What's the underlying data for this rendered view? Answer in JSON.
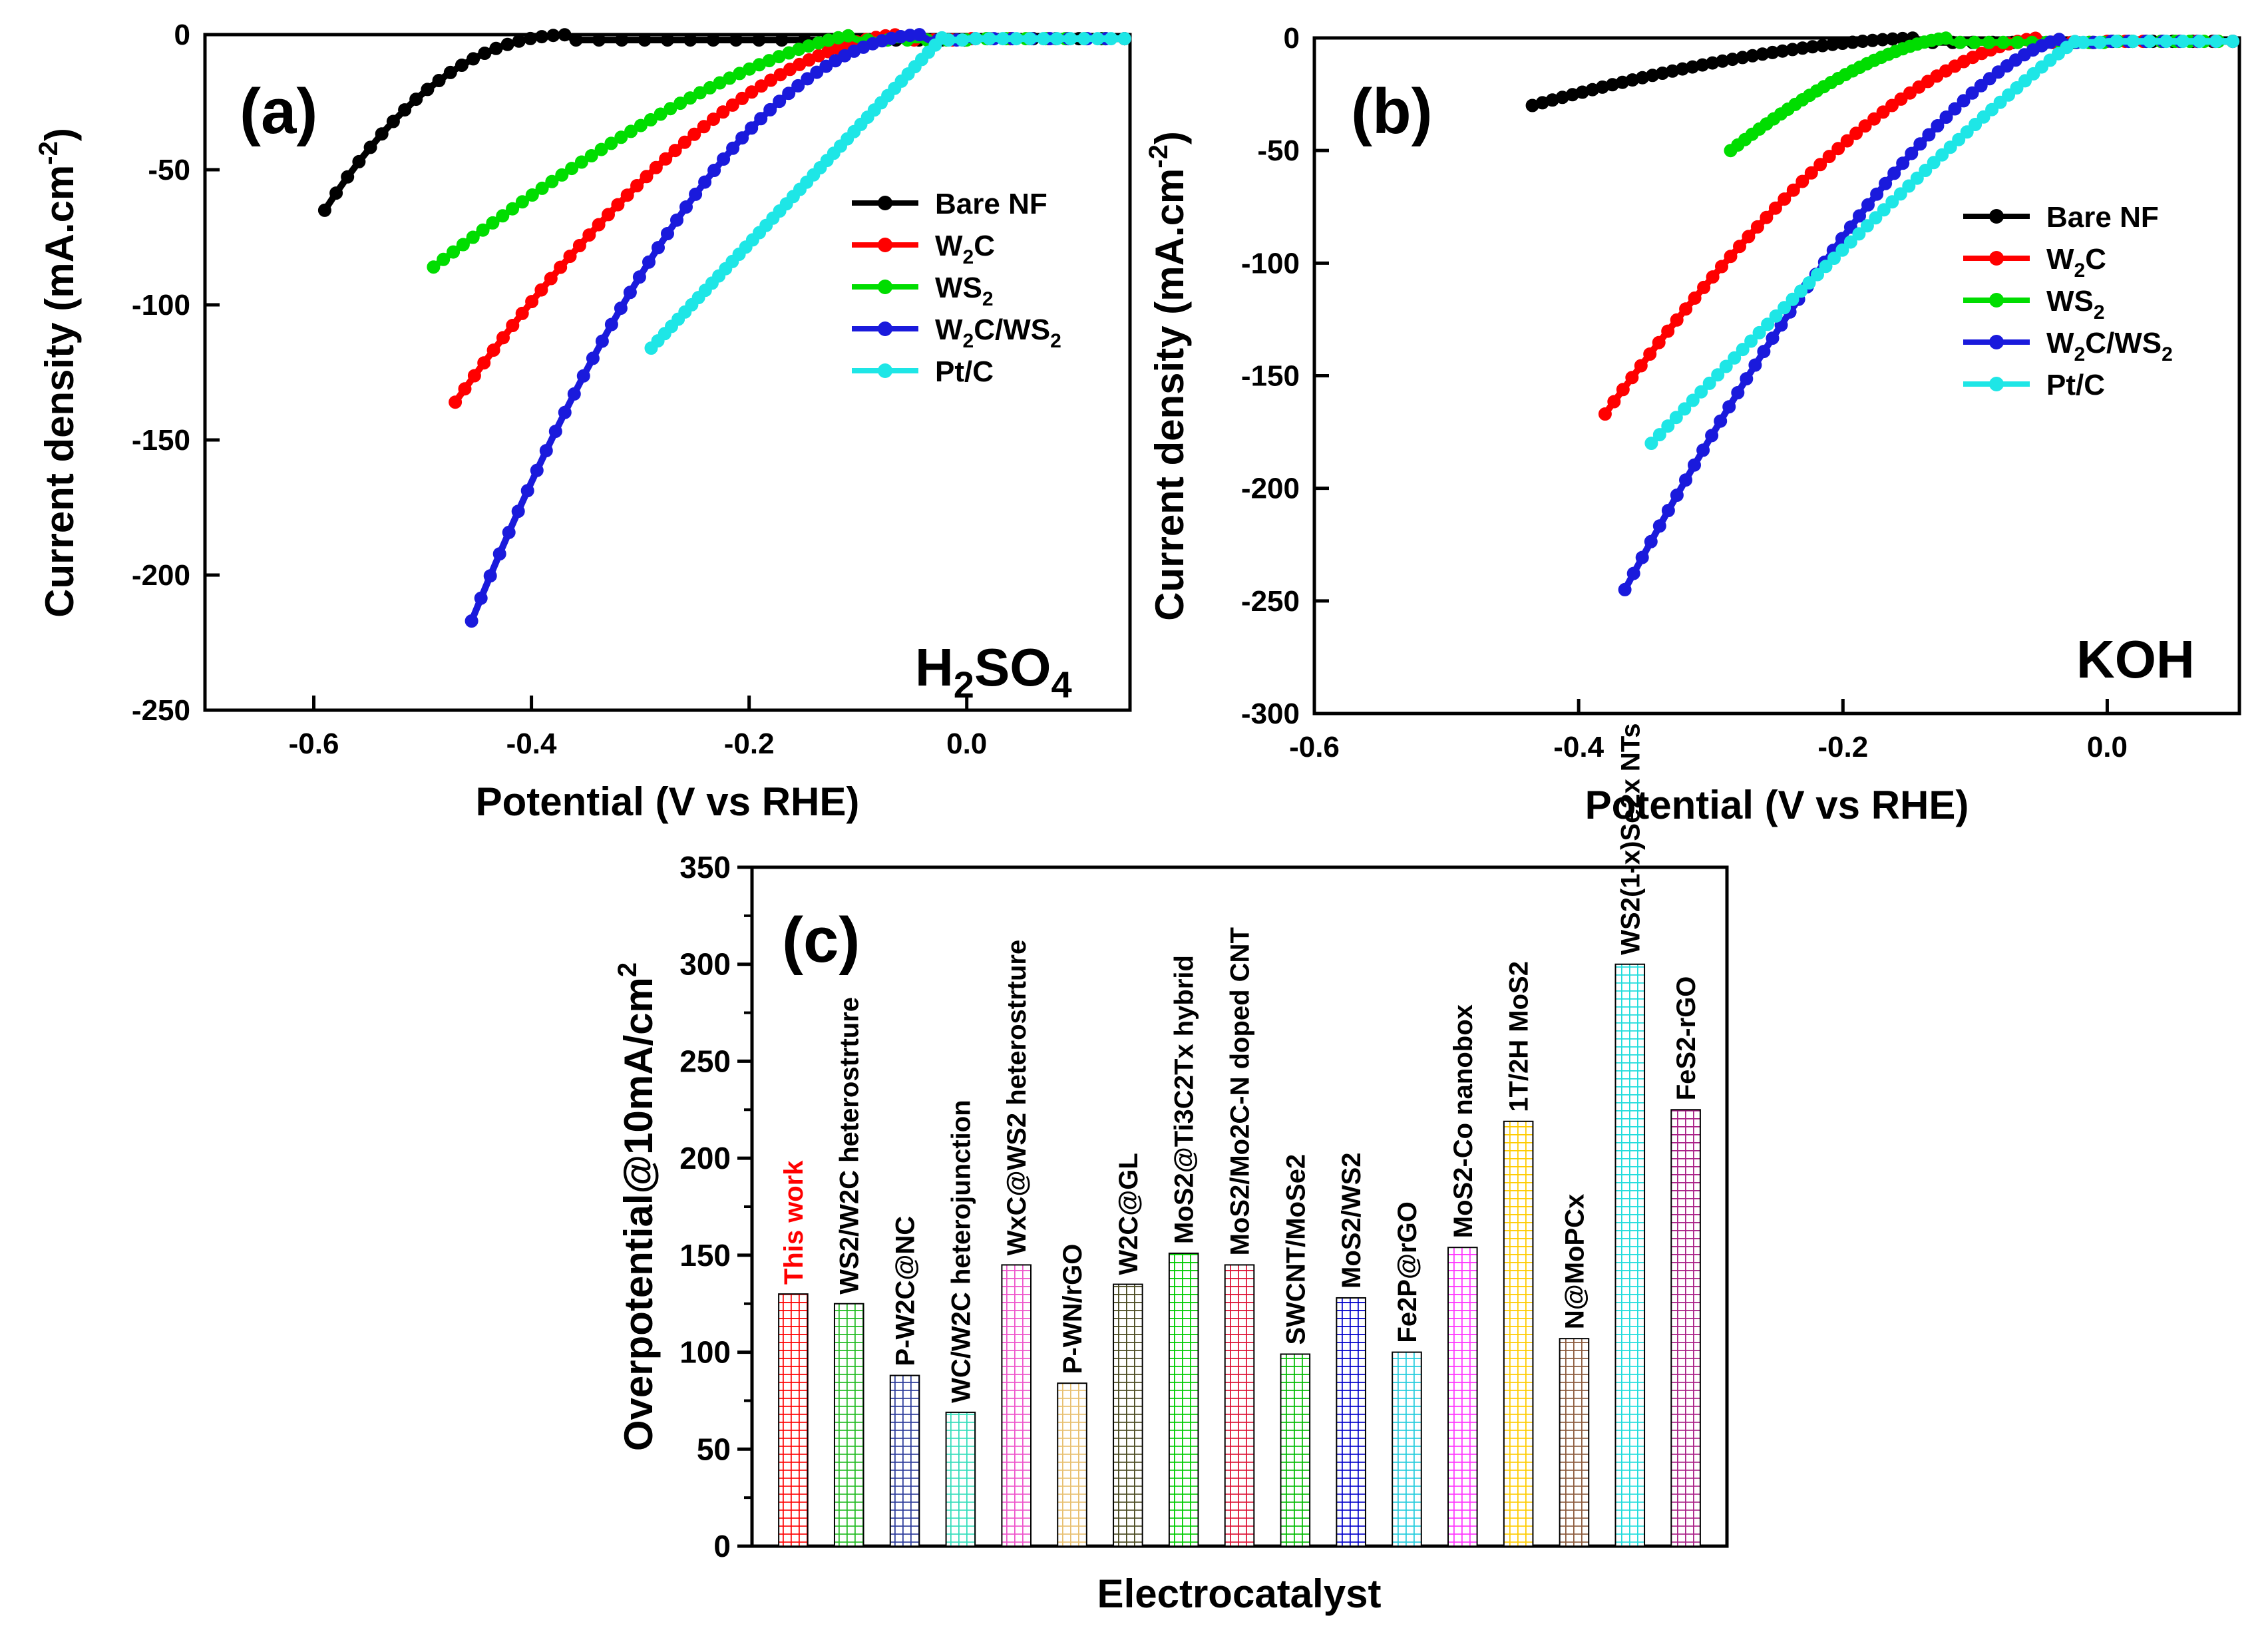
{
  "panels": {
    "a": {
      "label": "(a)",
      "electrolyte": {
        "main": "H",
        "sub1": "2",
        "mid": "SO",
        "sub2": "4"
      },
      "xlabel": "Potential (V vs RHE)",
      "ylabel": {
        "main": "Current density (mA.cm",
        "sup": "-2",
        "end": ")"
      },
      "xticks": [
        "-0.6",
        "-0.4",
        "-0.2",
        "0.0"
      ],
      "yticks": [
        "0",
        "-50",
        "-100",
        "-150",
        "-200",
        "-250"
      ]
    },
    "b": {
      "label": "(b)",
      "electrolyte": {
        "main": "KOH"
      },
      "xlabel": "Potential (V vs RHE)",
      "ylabel": {
        "main": "Current density (mA.cm",
        "sup": "-2",
        "end": ")"
      },
      "xticks": [
        "-0.6",
        "-0.4",
        "-0.2",
        "0.0"
      ],
      "yticks": [
        "0",
        "-50",
        "-100",
        "-150",
        "-200",
        "-250",
        "-300"
      ]
    },
    "c": {
      "label": "(c)",
      "xlabel": "Electrocatalyst",
      "ylabel": "Overpotential@10mA/cm",
      "ylabel_sup": "2",
      "yticks": [
        "0",
        "50",
        "100",
        "150",
        "200",
        "250",
        "300",
        "350"
      ]
    }
  },
  "legend": [
    {
      "main": "Bare NF"
    },
    {
      "main": "W",
      "sub": "2",
      "rest": "C"
    },
    {
      "main": "WS",
      "sub": "2"
    },
    {
      "main": "W",
      "sub": "2",
      "rest": "C/WS",
      "sub2": "2"
    },
    {
      "main": "Pt/C"
    }
  ],
  "chart_data": [
    {
      "panel": "a",
      "type": "line",
      "title": "",
      "annotation": "H2SO4",
      "xlabel": "Potential (V vs RHE)",
      "ylabel": "Current density (mA.cm-2)",
      "xlim": [
        -0.7,
        0.15
      ],
      "ylim": [
        -250,
        0
      ],
      "series": [
        {
          "name": "Bare NF",
          "color": "#000000",
          "onset": -0.36,
          "end_x": -0.59,
          "end_y": -65,
          "power": 2.2
        },
        {
          "name": "W2C",
          "color": "#ff0000",
          "onset": -0.06,
          "end_x": -0.47,
          "end_y": -136,
          "power": 1.7
        },
        {
          "name": "WS2",
          "color": "#00dd00",
          "onset": -0.1,
          "end_x": -0.49,
          "end_y": -86,
          "power": 1.4
        },
        {
          "name": "W2C/WS2",
          "color": "#1a1adc",
          "onset": -0.04,
          "end_x": -0.455,
          "end_y": -217,
          "power": 1.9
        },
        {
          "name": "Pt/C",
          "color": "#1ee6e6",
          "onset": -0.02,
          "end_x": -0.29,
          "end_y": -116,
          "power": 1.0
        }
      ]
    },
    {
      "panel": "b",
      "type": "line",
      "title": "",
      "annotation": "KOH",
      "xlabel": "Potential (V vs RHE)",
      "ylabel": "Current density (mA.cm-2)",
      "xlim": [
        -0.6,
        0.1
      ],
      "ylim": [
        -300,
        0
      ],
      "series": [
        {
          "name": "Bare NF",
          "color": "#000000",
          "onset": -0.14,
          "end_x": -0.435,
          "end_y": -30,
          "power": 1.6
        },
        {
          "name": "W2C",
          "color": "#ff0000",
          "onset": -0.05,
          "end_x": -0.38,
          "end_y": -167,
          "power": 1.6
        },
        {
          "name": "WS2",
          "color": "#00dd00",
          "onset": -0.12,
          "end_x": -0.285,
          "end_y": -50,
          "power": 1.5
        },
        {
          "name": "W2C/WS2",
          "color": "#1a1adc",
          "onset": -0.03,
          "end_x": -0.365,
          "end_y": -245,
          "power": 1.5
        },
        {
          "name": "Pt/C",
          "color": "#1ee6e6",
          "onset": -0.02,
          "end_x": -0.345,
          "end_y": -180,
          "power": 1.1
        }
      ]
    },
    {
      "panel": "c",
      "type": "bar",
      "title": "",
      "xlabel": "Electrocatalyst",
      "ylabel": "Overpotential@10mA/cm2",
      "ylim": [
        0,
        350
      ],
      "categories": [
        {
          "label": "This work",
          "value": 130,
          "color": "#ff0000",
          "label_color": "#ff0000"
        },
        {
          "label": "WS2/W2C heterostrture",
          "value": 125,
          "color": "#22bb22",
          "label_color": "#000000"
        },
        {
          "label": "P-W2C@NC",
          "value": 88,
          "color": "#2a3a9a",
          "label_color": "#000000"
        },
        {
          "label": "WC/W2C heterojunction",
          "value": 69,
          "color": "#33ddbb",
          "label_color": "#000000"
        },
        {
          "label": "WxC@WS2 heterostrture",
          "value": 145,
          "color": "#ee55cc",
          "label_color": "#000000"
        },
        {
          "label": "P-WN/rGO",
          "value": 84,
          "color": "#e8c070",
          "label_color": "#000000"
        },
        {
          "label": "W2C@GL",
          "value": 135,
          "color": "#4a4a20",
          "label_color": "#000000"
        },
        {
          "label": "MoS2@Ti3C2Tx hybrid",
          "value": 151,
          "color": "#00cc00",
          "label_color": "#000000"
        },
        {
          "label": "MoS2/Mo2C-N doped CNT",
          "value": 145,
          "color": "#dd1133",
          "label_color": "#000000"
        },
        {
          "label": "SWCNT/MoSe2",
          "value": 99,
          "color": "#00bb00",
          "label_color": "#000000"
        },
        {
          "label": "MoS2/WS2",
          "value": 128,
          "color": "#0000cc",
          "label_color": "#000000"
        },
        {
          "label": "Fe2P@rGO",
          "value": 100,
          "color": "#22ccdd",
          "label_color": "#000000"
        },
        {
          "label": "MoS2-Co nanobox",
          "value": 154,
          "color": "#ff33ff",
          "label_color": "#000000"
        },
        {
          "label": "1T/2H MoS2",
          "value": 219,
          "color": "#ffcc00",
          "label_color": "#000000"
        },
        {
          "label": "N@MoPCx",
          "value": 107,
          "color": "#8b5a3c",
          "label_color": "#000000"
        },
        {
          "label": "WS2(1-x)Se2x NTs",
          "value": 300,
          "color": "#22dddd",
          "label_color": "#000000"
        },
        {
          "label": "FeS2-rGO",
          "value": 225,
          "color": "#aa2288",
          "label_color": "#000000"
        }
      ]
    }
  ]
}
